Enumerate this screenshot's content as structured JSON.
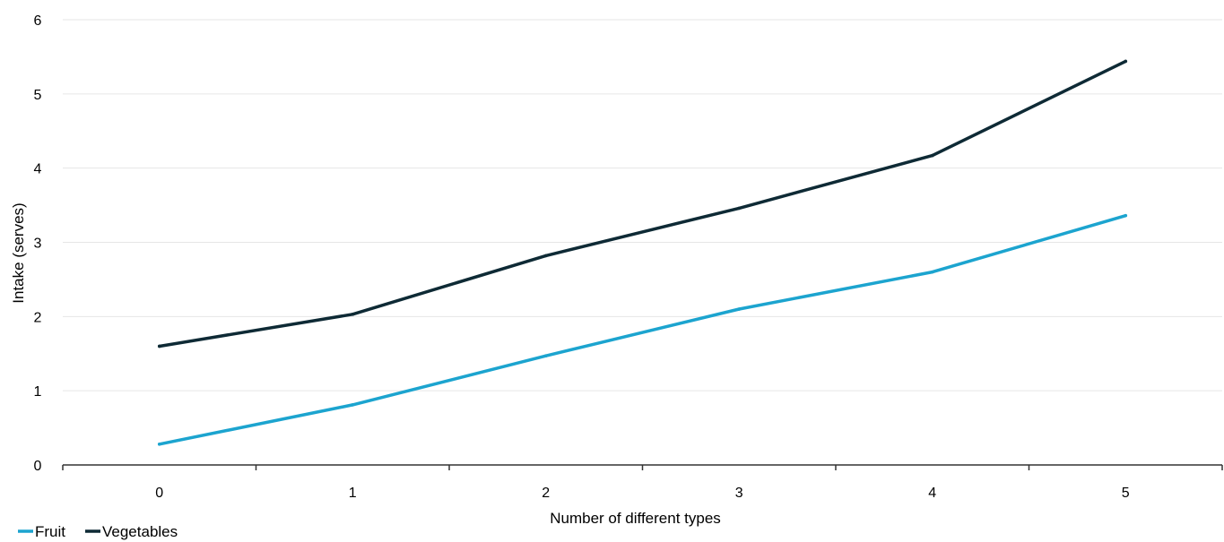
{
  "chart_data": {
    "type": "line",
    "title": "",
    "xlabel": "Number of different types",
    "ylabel": "Intake (serves)",
    "x": [
      0,
      1,
      2,
      3,
      4,
      5
    ],
    "xlim": [
      -0.5,
      5.5
    ],
    "ylim": [
      0,
      6
    ],
    "yticks": [
      0,
      1,
      2,
      3,
      4,
      5,
      6
    ],
    "grid": true,
    "legend_position": "bottom-left",
    "series": [
      {
        "name": "Fruit",
        "color": "#1ca4cf",
        "values": [
          0.28,
          0.81,
          1.47,
          2.1,
          2.6,
          3.36
        ]
      },
      {
        "name": "Vegetables",
        "color": "#0e2a35",
        "values": [
          1.6,
          2.03,
          2.82,
          3.46,
          4.17,
          5.44
        ]
      }
    ]
  }
}
